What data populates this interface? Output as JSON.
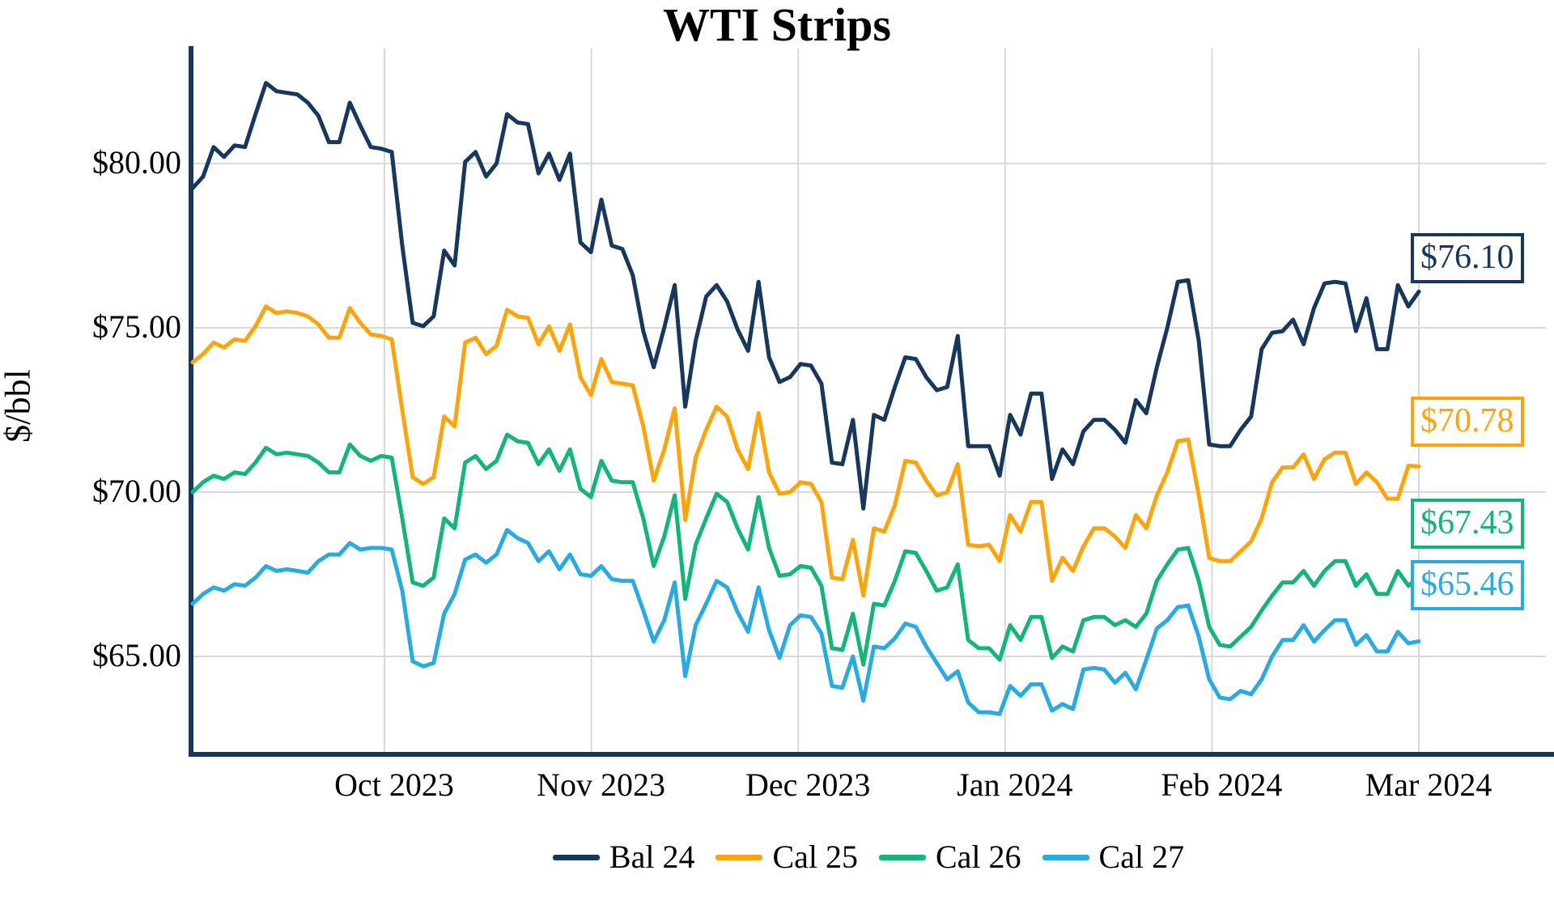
{
  "chart_data": {
    "type": "line",
    "title": "WTI Strips",
    "ylabel": "$/bbl",
    "x_tick_labels": [
      "Oct 2023",
      "Nov 2023",
      "Dec 2023",
      "Jan 2024",
      "Feb 2024",
      "Mar 2024"
    ],
    "y_tick_labels": [
      "$80.00",
      "$75.00",
      "$70.00",
      "$65.00"
    ],
    "y_tick_values": [
      80,
      75,
      70,
      65
    ],
    "ylim": [
      61.9,
      83.5
    ],
    "x_range_note": "daily weekday prices, mid-Sep 2023 through Mar 1 2024",
    "grid": true,
    "legend_position": "bottom-center",
    "axis_color": "#17375d",
    "gridline_color": "#d9d9d9",
    "series": [
      {
        "name": "Bal 24",
        "color": "#17375d",
        "end_label": "$76.10",
        "end_value": 76.1,
        "values": [
          79.25,
          79.6,
          80.5,
          80.2,
          80.55,
          80.5,
          81.5,
          82.45,
          82.2,
          82.15,
          82.1,
          81.85,
          81.45,
          80.65,
          80.65,
          81.85,
          81.15,
          80.5,
          80.45,
          80.35,
          77.5,
          75.15,
          75.05,
          75.35,
          77.35,
          76.9,
          80.05,
          80.35,
          79.6,
          80.0,
          81.5,
          81.25,
          81.2,
          79.7,
          80.3,
          79.5,
          80.3,
          77.6,
          77.3,
          78.9,
          77.5,
          77.4,
          76.6,
          74.9,
          73.8,
          75.0,
          76.3,
          72.6,
          74.6,
          75.95,
          76.3,
          75.8,
          74.95,
          74.3,
          76.4,
          74.1,
          73.35,
          73.5,
          73.9,
          73.85,
          73.3,
          70.9,
          70.85,
          72.2,
          69.5,
          72.35,
          72.2,
          73.2,
          74.1,
          74.05,
          73.5,
          73.1,
          73.2,
          74.75,
          71.4,
          71.4,
          71.4,
          70.5,
          72.35,
          71.75,
          73.0,
          73.0,
          70.4,
          71.3,
          70.85,
          71.85,
          72.2,
          72.2,
          71.9,
          71.5,
          72.8,
          72.4,
          73.8,
          75.0,
          76.4,
          76.45,
          74.6,
          71.45,
          71.4,
          71.4,
          71.9,
          72.3,
          74.35,
          74.85,
          74.9,
          75.25,
          74.5,
          75.6,
          76.35,
          76.4,
          76.35,
          74.9,
          75.9,
          74.35,
          74.35,
          76.3,
          75.65,
          76.1
        ]
      },
      {
        "name": "Cal 25",
        "color": "#fca40b",
        "end_label": "$70.78",
        "end_value": 70.78,
        "values": [
          73.95,
          74.2,
          74.55,
          74.4,
          74.65,
          74.6,
          75.05,
          75.65,
          75.45,
          75.5,
          75.45,
          75.35,
          75.1,
          74.7,
          74.7,
          75.6,
          75.15,
          74.8,
          74.75,
          74.65,
          72.5,
          70.45,
          70.25,
          70.45,
          72.3,
          72.0,
          74.55,
          74.7,
          74.2,
          74.45,
          75.55,
          75.35,
          75.3,
          74.5,
          75.05,
          74.3,
          75.1,
          73.5,
          72.95,
          74.05,
          73.35,
          73.3,
          73.25,
          72.0,
          70.35,
          71.3,
          72.55,
          69.15,
          71.05,
          71.9,
          72.6,
          72.3,
          71.3,
          70.7,
          72.4,
          70.6,
          69.95,
          70.0,
          70.3,
          70.25,
          69.7,
          67.4,
          67.35,
          68.55,
          66.85,
          68.9,
          68.8,
          69.6,
          70.95,
          70.9,
          70.35,
          69.9,
          70.0,
          70.85,
          68.4,
          68.35,
          68.4,
          67.9,
          69.3,
          68.8,
          69.7,
          69.7,
          67.3,
          68.0,
          67.6,
          68.35,
          68.9,
          68.9,
          68.65,
          68.3,
          69.3,
          68.9,
          69.9,
          70.6,
          71.55,
          71.6,
          69.9,
          68.0,
          67.9,
          67.9,
          68.2,
          68.5,
          69.2,
          70.3,
          70.75,
          70.75,
          71.15,
          70.4,
          71.0,
          71.2,
          71.2,
          70.25,
          70.6,
          70.3,
          69.8,
          69.8,
          70.8,
          70.78
        ]
      },
      {
        "name": "Cal 26",
        "color": "#13b57b",
        "end_label": "$67.43",
        "end_value": 67.43,
        "values": [
          70.0,
          70.3,
          70.5,
          70.4,
          70.6,
          70.55,
          70.9,
          71.35,
          71.15,
          71.2,
          71.15,
          71.1,
          70.9,
          70.6,
          70.6,
          71.45,
          71.1,
          70.95,
          71.1,
          71.05,
          69.2,
          67.25,
          67.15,
          67.4,
          69.2,
          68.9,
          70.9,
          71.1,
          70.7,
          70.95,
          71.75,
          71.55,
          71.5,
          70.85,
          71.3,
          70.65,
          71.3,
          70.1,
          69.85,
          70.95,
          70.35,
          70.3,
          70.3,
          69.2,
          67.75,
          68.65,
          69.9,
          66.75,
          68.4,
          69.2,
          69.95,
          69.7,
          68.9,
          68.25,
          69.85,
          68.3,
          67.45,
          67.5,
          67.75,
          67.7,
          67.15,
          65.25,
          65.2,
          66.3,
          64.75,
          66.6,
          66.55,
          67.3,
          68.2,
          68.15,
          67.6,
          67.0,
          67.1,
          67.8,
          65.5,
          65.25,
          65.25,
          64.9,
          65.95,
          65.5,
          66.2,
          66.2,
          64.95,
          65.3,
          65.15,
          66.1,
          66.2,
          66.2,
          65.95,
          66.1,
          65.9,
          66.3,
          67.3,
          67.8,
          68.25,
          68.3,
          67.3,
          65.9,
          65.35,
          65.3,
          65.6,
          65.9,
          66.4,
          66.85,
          67.25,
          67.25,
          67.6,
          67.15,
          67.6,
          67.9,
          67.9,
          67.15,
          67.5,
          66.9,
          66.9,
          67.6,
          67.15,
          67.43
        ]
      },
      {
        "name": "Cal 27",
        "color": "#29abe2",
        "end_label": "$65.46",
        "end_value": 65.46,
        "values": [
          66.6,
          66.9,
          67.1,
          67.0,
          67.2,
          67.15,
          67.4,
          67.75,
          67.6,
          67.65,
          67.6,
          67.55,
          67.9,
          68.1,
          68.1,
          68.45,
          68.25,
          68.3,
          68.3,
          68.25,
          67.0,
          64.85,
          64.7,
          64.8,
          66.3,
          66.9,
          67.95,
          68.1,
          67.85,
          68.1,
          68.85,
          68.6,
          68.45,
          67.9,
          68.2,
          67.65,
          68.1,
          67.5,
          67.45,
          67.75,
          67.35,
          67.3,
          67.3,
          66.4,
          65.45,
          66.1,
          67.25,
          64.4,
          65.95,
          66.6,
          67.3,
          67.1,
          66.35,
          65.75,
          67.1,
          65.8,
          64.95,
          65.95,
          66.25,
          66.2,
          65.7,
          64.1,
          64.05,
          65.0,
          63.65,
          65.3,
          65.25,
          65.55,
          66.0,
          65.9,
          65.3,
          64.8,
          64.3,
          64.55,
          63.6,
          63.3,
          63.3,
          63.25,
          64.1,
          63.8,
          64.15,
          64.15,
          63.35,
          63.55,
          63.4,
          64.6,
          64.65,
          64.6,
          64.2,
          64.5,
          64.0,
          64.9,
          65.85,
          66.1,
          66.5,
          66.55,
          65.6,
          64.3,
          63.75,
          63.7,
          63.95,
          63.85,
          64.3,
          65.0,
          65.5,
          65.5,
          65.95,
          65.45,
          65.8,
          66.1,
          66.1,
          65.35,
          65.65,
          65.15,
          65.15,
          65.75,
          65.4,
          65.46
        ]
      }
    ]
  }
}
